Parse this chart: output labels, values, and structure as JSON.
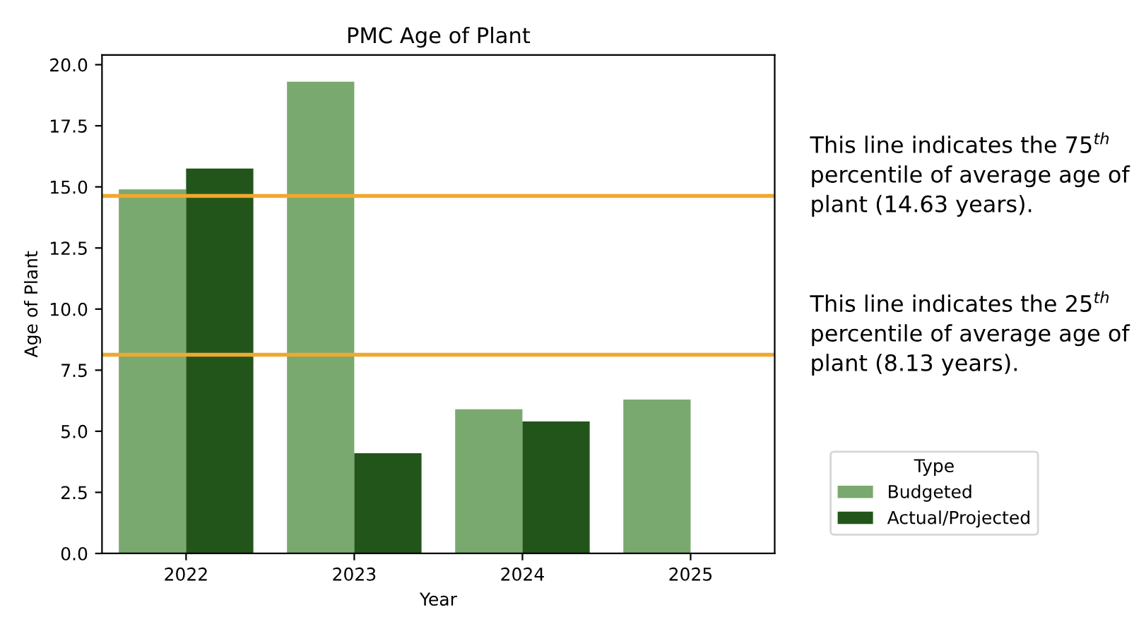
{
  "chart_data": {
    "type": "bar",
    "title": "PMC Age of Plant",
    "xlabel": "Year",
    "ylabel": "Age of Plant",
    "legend_title": "Type",
    "categories": [
      "2022",
      "2023",
      "2024",
      "2025"
    ],
    "series": [
      {
        "name": "Budgeted",
        "color": "#79a96e",
        "values": [
          14.9,
          19.3,
          5.9,
          6.3
        ]
      },
      {
        "name": "Actual/Projected",
        "color": "#22551a",
        "values": [
          15.75,
          4.1,
          5.4,
          null
        ]
      }
    ],
    "ylim": [
      0,
      20.4
    ],
    "yticks": [
      {
        "value": 0,
        "label": "0.0"
      },
      {
        "value": 2.5,
        "label": "2.5"
      },
      {
        "value": 5,
        "label": "5.0"
      },
      {
        "value": 7.5,
        "label": "7.5"
      },
      {
        "value": 10,
        "label": "10.0"
      },
      {
        "value": 12.5,
        "label": "12.5"
      },
      {
        "value": 15,
        "label": "15.0"
      },
      {
        "value": 17.5,
        "label": "17.5"
      },
      {
        "value": 20,
        "label": "20.0"
      }
    ],
    "ref_lines": [
      {
        "axis": "y",
        "value": 14.63,
        "color": "#f0a830",
        "label": "This line indicates the 75$^{th}$\npercentile of average age of\nplant (14.63 years)."
      },
      {
        "axis": "y",
        "value": 8.13,
        "color": "#f0a830",
        "label": "This line indicates the 25$^{th}$\npercentile of average age of\nplant (8.13 years)."
      }
    ],
    "grid": false,
    "legend": "bottom right"
  }
}
